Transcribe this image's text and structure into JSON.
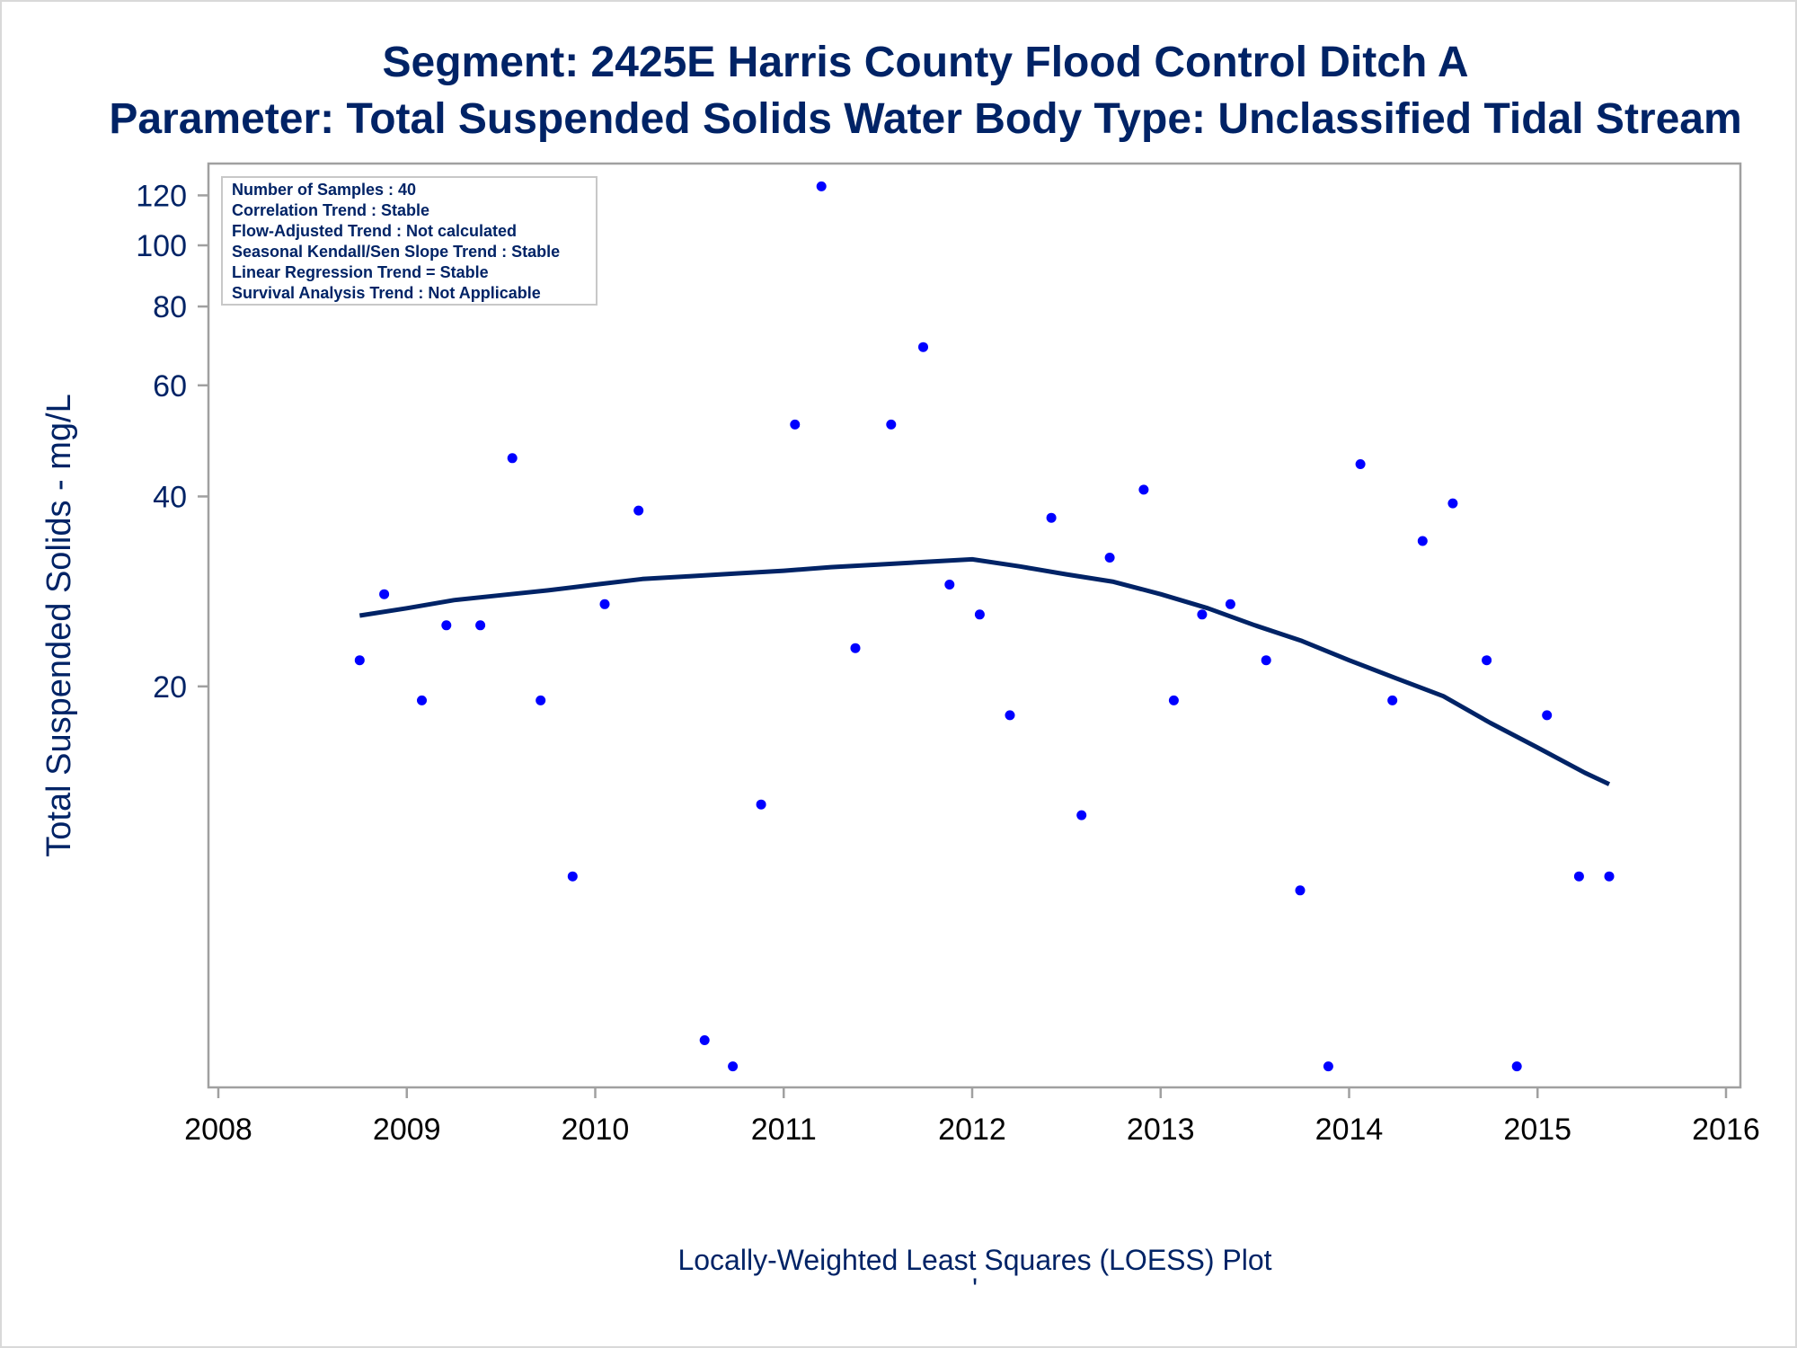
{
  "chart_data": {
    "type": "scatter",
    "title": "Segment: 2425E  Harris County Flood Control Ditch A",
    "subtitle": "Parameter: Total Suspended Solids   Water Body Type: Unclassified Tidal Stream",
    "xlabel": "",
    "ylabel": "Total Suspended Solids - mg/L",
    "footnote": "Locally-Weighted Least Squares (LOESS) Plot",
    "footnote_mark": "'",
    "y_scale": "log",
    "xlim": [
      2008,
      2016
    ],
    "ylim": [
      4.8,
      130
    ],
    "x_ticks": [
      2008,
      2009,
      2010,
      2011,
      2012,
      2013,
      2014,
      2015,
      2016
    ],
    "y_ticks": [
      20,
      40,
      60,
      80,
      100,
      120
    ],
    "grid": false,
    "info_box": {
      "position": "top-left",
      "lines": [
        "Number of Samples : 40",
        "Correlation Trend : Stable",
        "Flow-Adjusted Trend : Not calculated",
        "Seasonal Kendall/Sen Slope Trend : Stable",
        "Linear Regression Trend = Stable",
        "Survival Analysis Trend : Not Applicable"
      ]
    },
    "series": [
      {
        "type": "scatter",
        "color": "#0000ff",
        "points": [
          [
            2008.75,
            22
          ],
          [
            2008.88,
            28
          ],
          [
            2009.08,
            19
          ],
          [
            2009.21,
            25
          ],
          [
            2009.39,
            25
          ],
          [
            2009.56,
            46
          ],
          [
            2009.71,
            19
          ],
          [
            2009.88,
            10
          ],
          [
            2010.05,
            27
          ],
          [
            2010.23,
            38
          ],
          [
            2010.58,
            5.5
          ],
          [
            2010.73,
            5
          ],
          [
            2010.88,
            13
          ],
          [
            2011.06,
            52
          ],
          [
            2011.2,
            124
          ],
          [
            2011.38,
            23
          ],
          [
            2011.57,
            52
          ],
          [
            2011.74,
            69
          ],
          [
            2011.88,
            29
          ],
          [
            2012.04,
            26
          ],
          [
            2012.2,
            18
          ],
          [
            2012.42,
            37
          ],
          [
            2012.58,
            12.5
          ],
          [
            2012.73,
            32
          ],
          [
            2012.91,
            41
          ],
          [
            2013.07,
            19
          ],
          [
            2013.22,
            26
          ],
          [
            2013.37,
            27
          ],
          [
            2013.56,
            22
          ],
          [
            2013.74,
            9.5
          ],
          [
            2013.89,
            5
          ],
          [
            2014.06,
            45
          ],
          [
            2014.23,
            19
          ],
          [
            2014.39,
            34
          ],
          [
            2014.55,
            39
          ],
          [
            2014.73,
            22
          ],
          [
            2014.89,
            5
          ],
          [
            2015.05,
            18
          ],
          [
            2015.22,
            10
          ],
          [
            2015.38,
            10
          ]
        ]
      },
      {
        "type": "line",
        "color": "#002366",
        "points": [
          [
            2008.75,
            25.9
          ],
          [
            2009.0,
            26.6
          ],
          [
            2009.25,
            27.4
          ],
          [
            2009.5,
            27.9
          ],
          [
            2009.75,
            28.4
          ],
          [
            2010.0,
            29.0
          ],
          [
            2010.25,
            29.6
          ],
          [
            2010.5,
            29.9
          ],
          [
            2010.75,
            30.2
          ],
          [
            2011.0,
            30.5
          ],
          [
            2011.25,
            30.9
          ],
          [
            2011.5,
            31.2
          ],
          [
            2011.75,
            31.5
          ],
          [
            2012.0,
            31.8
          ],
          [
            2012.25,
            31.0
          ],
          [
            2012.5,
            30.1
          ],
          [
            2012.75,
            29.3
          ],
          [
            2013.0,
            28.0
          ],
          [
            2013.25,
            26.6
          ],
          [
            2013.5,
            25.0
          ],
          [
            2013.75,
            23.6
          ],
          [
            2014.0,
            22.0
          ],
          [
            2014.25,
            20.6
          ],
          [
            2014.5,
            19.3
          ],
          [
            2014.75,
            17.5
          ],
          [
            2015.0,
            16.0
          ],
          [
            2015.25,
            14.6
          ],
          [
            2015.38,
            14.0
          ]
        ]
      }
    ]
  }
}
